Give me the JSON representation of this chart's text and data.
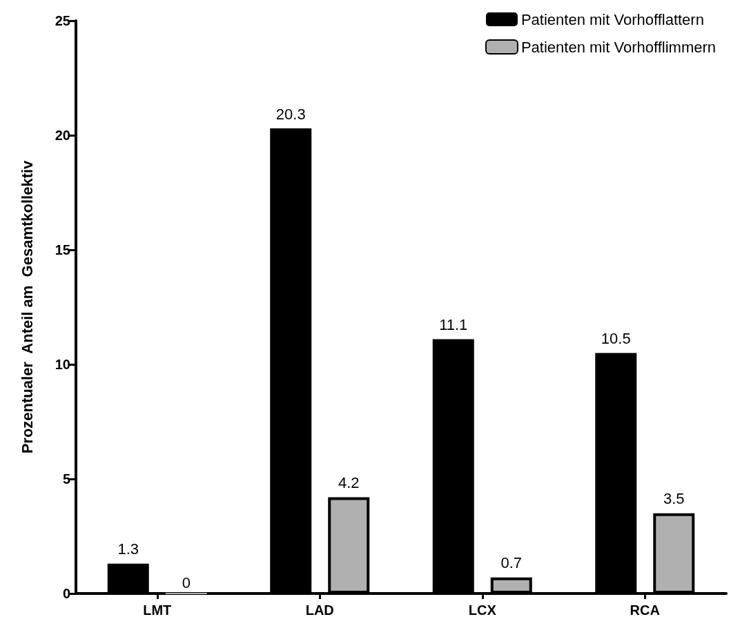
{
  "chart_data": {
    "type": "bar",
    "ylabel": "Prozentualer  Anteil am  Gesamtkollektiv",
    "categories": [
      "LMT",
      "LAD",
      "LCX",
      "RCA"
    ],
    "series": [
      {
        "name": "Patienten mit Vorhofflattern",
        "color": "#000000",
        "values": [
          1.3,
          20.3,
          11.1,
          10.5
        ]
      },
      {
        "name": "Patienten mit Vorhofflimmern",
        "color": "#b0b0b0",
        "values": [
          0,
          4.2,
          0.7,
          3.5
        ]
      }
    ],
    "ylim": [
      0,
      25
    ],
    "yticks": [
      0,
      5,
      10,
      15,
      20,
      25
    ],
    "grid": false,
    "legend": "top right",
    "data_labels": true
  }
}
